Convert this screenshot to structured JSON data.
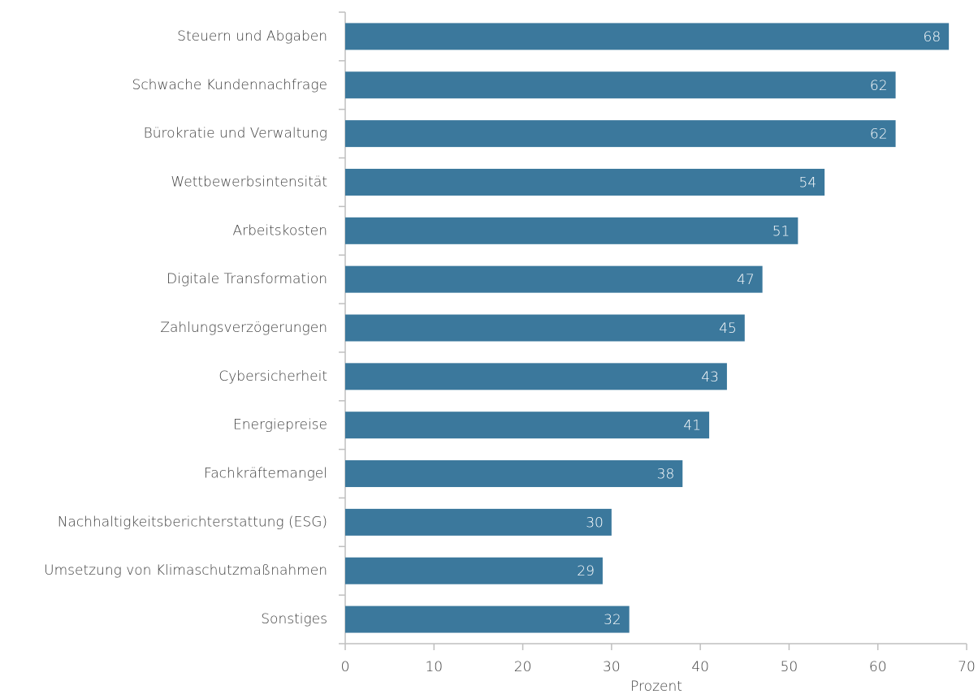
{
  "chart_data": {
    "type": "bar",
    "orientation": "horizontal",
    "categories": [
      "Steuern und Abgaben",
      "Schwache Kundennachfrage",
      "Bürokratie und Verwaltung",
      "Wettbewerbsintensität",
      "Arbeitskosten",
      "Digitale Transformation",
      "Zahlungsverzögerungen",
      "Cybersicherheit",
      "Energiepreise",
      "Fachkräftemangel",
      "Nachhaltigkeitsberichterstattung (ESG)",
      "Umsetzung von Klimaschutzmaßnahmen",
      "Sonstiges"
    ],
    "values": [
      68,
      62,
      62,
      54,
      51,
      47,
      45,
      43,
      41,
      38,
      30,
      29,
      32
    ],
    "color": "#3b789c",
    "x_label": "Prozent",
    "xlim": [
      0,
      70
    ],
    "xticks": [
      0,
      10,
      20,
      30,
      40,
      50,
      60,
      70
    ],
    "grid": false
  }
}
